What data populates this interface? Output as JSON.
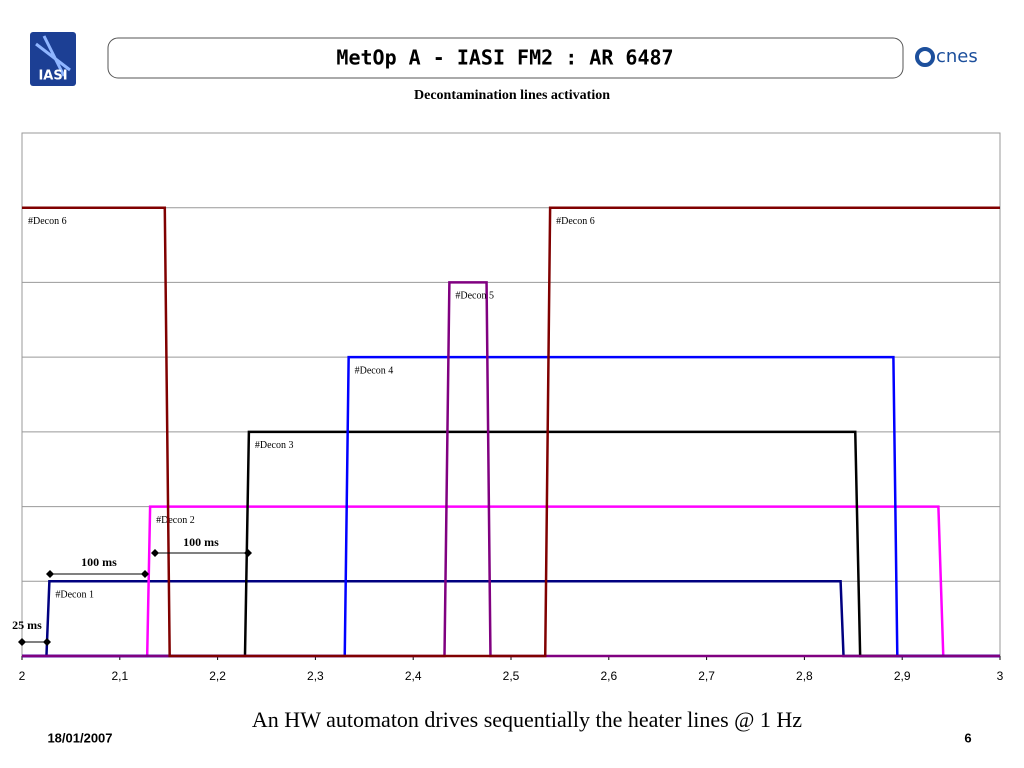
{
  "slide": {
    "title": "MetOp A - IASI FM2 : AR 6487",
    "left_logo": "IASI",
    "right_logo": "cnes",
    "caption": "An HW automaton drives sequentially the heater lines @ 1 Hz",
    "date": "18/01/2007",
    "page": "6"
  },
  "chart_data": {
    "type": "line",
    "title": "Decontamination lines activation",
    "xlim": [
      2,
      3
    ],
    "xticks": [
      2,
      {
        "value": 2.1,
        "label": "2,1"
      },
      {
        "value": 2.2,
        "label": "2,2"
      },
      {
        "value": 2.3,
        "label": "2,3"
      },
      {
        "value": 2.4,
        "label": "2,4"
      },
      {
        "value": 2.5,
        "label": "2,5"
      },
      {
        "value": 2.6,
        "label": "2,6"
      },
      {
        "value": 2.7,
        "label": "2,7"
      },
      {
        "value": 2.8,
        "label": "2,8"
      },
      {
        "value": 2.9,
        "label": "2,9"
      },
      3
    ],
    "ylim": [
      0,
      7
    ],
    "ygrid": [
      1,
      2,
      3,
      4,
      5,
      6
    ],
    "grid": true,
    "series": [
      {
        "name": "#Decon 1",
        "color": "#000080",
        "x": [
          2,
          2.025,
          2.028,
          2.837,
          2.84,
          3
        ],
        "values": [
          0,
          0,
          1,
          1,
          0,
          0
        ]
      },
      {
        "name": "#Decon 2",
        "color": "#ff00ff",
        "x": [
          2,
          2.128,
          2.131,
          2.937,
          2.942,
          3
        ],
        "values": [
          0,
          0,
          2,
          2,
          0,
          0
        ]
      },
      {
        "name": "#Decon 3",
        "color": "#000000",
        "x": [
          2,
          2.228,
          2.232,
          2.852,
          2.857,
          3
        ],
        "values": [
          0,
          0,
          3,
          3,
          0,
          0
        ]
      },
      {
        "name": "#Decon 4",
        "color": "#0000ff",
        "x": [
          2,
          2.33,
          2.334,
          2.891,
          2.895,
          3
        ],
        "values": [
          0,
          0,
          4,
          4,
          0,
          0
        ]
      },
      {
        "name": "#Decon 5",
        "color": "#800080",
        "x": [
          2,
          2.432,
          2.437,
          2.475,
          2.479,
          3
        ],
        "values": [
          0,
          0,
          5,
          5,
          0,
          0
        ]
      },
      {
        "name": "#Decon 6",
        "color": "#800000",
        "x": [
          2,
          2.146,
          2.151,
          2.535,
          2.54,
          3
        ],
        "values": [
          6,
          6,
          0,
          0,
          6,
          6
        ]
      }
    ],
    "annotations": [
      {
        "text": "25 ms"
      },
      {
        "text": "100 ms"
      },
      {
        "text": "100 ms"
      }
    ]
  }
}
